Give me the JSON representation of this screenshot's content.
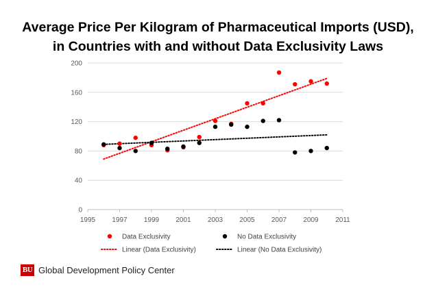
{
  "chart_data": {
    "type": "scatter",
    "title": "Average Price Per Kilogram of Pharmaceutical Imports (USD),",
    "subtitle": "in Countries with and without Data Exclusivity Laws",
    "xlabel": "",
    "ylabel": "",
    "xlim": [
      1995,
      2011
    ],
    "ylim": [
      0,
      200
    ],
    "xticks": [
      1995,
      1997,
      1999,
      2001,
      2003,
      2005,
      2007,
      2009,
      2011
    ],
    "yticks": [
      0,
      40,
      80,
      120,
      160,
      200
    ],
    "xtick_labels": [
      "1995",
      "1997",
      "1999",
      "2001",
      "2003",
      "2005",
      "2007",
      "2009",
      "2011"
    ],
    "ytick_labels": [
      "0",
      "40",
      "80",
      "120",
      "160",
      "200"
    ],
    "grid": "horizontal",
    "legend_position": "bottom",
    "series": [
      {
        "name": "Data Exclusivity",
        "color": "#ff0000",
        "marker": "circle",
        "x": [
          1996,
          1997,
          1998,
          1999,
          2000,
          2001,
          2002,
          2003,
          2004,
          2005,
          2006,
          2007,
          2008,
          2009,
          2010
        ],
        "y": [
          88,
          90,
          98,
          88,
          81,
          85,
          99,
          121,
          117,
          145,
          145,
          187,
          171,
          175,
          172
        ]
      },
      {
        "name": "No Data Exclusivity",
        "color": "#000000",
        "marker": "circle",
        "x": [
          1996,
          1997,
          1998,
          1999,
          2000,
          2001,
          2002,
          2003,
          2004,
          2005,
          2006,
          2007,
          2008,
          2009,
          2010
        ],
        "y": [
          89,
          84,
          80,
          91,
          83,
          86,
          91,
          113,
          116,
          113,
          121,
          122,
          78,
          80,
          84
        ]
      }
    ],
    "trendlines": [
      {
        "name": "Linear (Data Exclusivity)",
        "color": "#ff0000",
        "style": "dotted",
        "x": [
          1996,
          2010
        ],
        "y": [
          69,
          179
        ]
      },
      {
        "name": "Linear (No Data Exclusivity)",
        "color": "#000000",
        "style": "dotted",
        "x": [
          1996,
          2010
        ],
        "y": [
          89,
          102
        ]
      }
    ]
  },
  "footer": {
    "logo_text": "BU",
    "logo_color": "#cc0000",
    "org_name": "Global Development Policy Center"
  }
}
